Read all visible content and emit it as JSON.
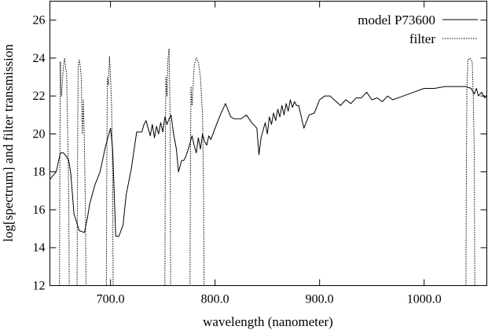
{
  "chart_data": {
    "type": "line",
    "title": "",
    "xlabel": "wavelength (nanometer)",
    "ylabel": "log[spectrum] and filter transmission",
    "xlim": [
      642,
      1060
    ],
    "ylim": [
      12,
      27
    ],
    "xticks": [
      700,
      800,
      900,
      1000
    ],
    "xtick_labels": [
      "700.0",
      "800.0",
      "900.0",
      "1000.0"
    ],
    "yticks": [
      12,
      14,
      16,
      18,
      20,
      22,
      24,
      26
    ],
    "ytick_labels": [
      "12",
      "14",
      "16",
      "18",
      "20",
      "22",
      "24",
      "26"
    ],
    "grid": false,
    "legend_position": "top-right",
    "series": [
      {
        "name": "model P73600",
        "style": "solid",
        "color": "#000000",
        "x": [
          642,
          648,
          652,
          655,
          658,
          660,
          662,
          665,
          670,
          675,
          678,
          680,
          685,
          690,
          695,
          700,
          702,
          705,
          708,
          712,
          715,
          720,
          725,
          730,
          732,
          734,
          736,
          738,
          740,
          742,
          744,
          746,
          748,
          750,
          752,
          754,
          756,
          758,
          760,
          763,
          765,
          768,
          770,
          772,
          775,
          778,
          780,
          782,
          784,
          786,
          788,
          790,
          792,
          794,
          796,
          798,
          800,
          805,
          810,
          815,
          818,
          822,
          825,
          830,
          835,
          840,
          842,
          844,
          846,
          848,
          850,
          852,
          854,
          856,
          858,
          860,
          862,
          864,
          866,
          868,
          870,
          872,
          874,
          876,
          878,
          880,
          885,
          890,
          895,
          900,
          905,
          910,
          920,
          925,
          930,
          935,
          940,
          945,
          950,
          955,
          960,
          965,
          970,
          980,
          990,
          1000,
          1010,
          1020,
          1030,
          1040,
          1045,
          1048,
          1050,
          1052,
          1055,
          1058,
          1060
        ],
        "y": [
          17.6,
          18.0,
          19.0,
          19.0,
          18.8,
          18.6,
          17.9,
          15.8,
          14.9,
          14.8,
          15.6,
          16.3,
          17.3,
          18.0,
          19.3,
          20.3,
          19.2,
          14.6,
          14.6,
          15.2,
          16.8,
          18.2,
          20.1,
          20.1,
          20.5,
          20.7,
          20.3,
          19.9,
          20.5,
          19.8,
          20.4,
          20.0,
          20.6,
          20.1,
          20.9,
          20.5,
          20.8,
          21.0,
          20.1,
          19.2,
          18.0,
          18.6,
          18.6,
          18.8,
          19.3,
          19.9,
          19.4,
          19.0,
          19.8,
          19.2,
          20.0,
          19.6,
          19.4,
          19.9,
          19.7,
          20.0,
          20.3,
          21.0,
          21.6,
          20.9,
          20.8,
          20.8,
          20.8,
          21.0,
          20.6,
          20.3,
          18.9,
          19.8,
          20.2,
          20.6,
          20.0,
          20.9,
          20.5,
          21.1,
          20.7,
          21.3,
          20.9,
          21.5,
          21.0,
          21.6,
          21.2,
          21.8,
          21.4,
          21.7,
          21.5,
          21.5,
          20.3,
          21.0,
          21.1,
          21.8,
          22.0,
          22.0,
          21.5,
          21.8,
          21.6,
          21.9,
          21.9,
          22.2,
          21.8,
          21.9,
          21.7,
          22.0,
          21.8,
          22.0,
          22.2,
          22.4,
          22.4,
          22.5,
          22.5,
          22.5,
          22.4,
          22.1,
          22.4,
          22.0,
          22.2,
          21.9,
          22.0
        ]
      },
      {
        "name": "filter",
        "style": "dotted",
        "color": "#000000",
        "x": [
          642,
          651.2,
          651.5,
          652,
          652.5,
          653,
          654,
          655,
          656,
          657,
          658,
          659,
          660,
          660.5,
          661,
          668,
          668.5,
          669,
          670,
          671,
          672,
          673,
          674,
          675,
          676,
          676.5,
          677,
          678,
          696,
          696.5,
          697,
          698,
          699,
          700,
          701,
          702,
          702.5,
          703,
          752,
          752.5,
          753,
          754,
          755,
          756,
          757,
          757.5,
          758,
          776,
          776.5,
          777,
          778,
          780,
          782,
          784,
          786,
          788,
          789,
          789.5,
          790,
          1040,
          1040.5,
          1041,
          1042,
          1044,
          1046,
          1047,
          1048,
          1048.5,
          1049,
          1060
        ],
        "y": [
          12,
          12,
          18.0,
          23.8,
          22.5,
          22.0,
          22.8,
          23.6,
          24.0,
          23.5,
          23.2,
          20.0,
          17.0,
          12,
          12,
          12,
          19.0,
          23.5,
          23.9,
          23.6,
          23.0,
          20.0,
          21.8,
          19.5,
          16.0,
          12,
          12,
          12,
          12,
          19.0,
          23.0,
          22.6,
          24.1,
          23.0,
          21.5,
          18.0,
          12,
          12,
          12,
          20.0,
          23.0,
          22.0,
          24.0,
          24.5,
          21.0,
          12,
          12,
          12,
          19.0,
          22.5,
          21.5,
          23.6,
          24.0,
          23.8,
          23.0,
          21.0,
          17.0,
          12,
          12,
          12,
          19.0,
          22.5,
          23.9,
          24.0,
          23.8,
          22.0,
          19.0,
          12,
          12,
          12
        ]
      }
    ]
  }
}
